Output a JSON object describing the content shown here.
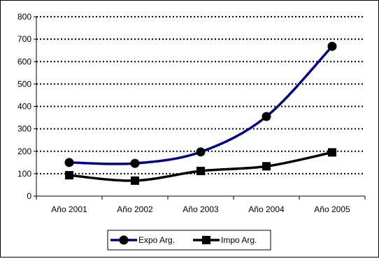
{
  "chart_data": {
    "type": "line",
    "categories": [
      "Año 2001",
      "Año 2002",
      "Año 2003",
      "Año 2004",
      "Año 2005"
    ],
    "series": [
      {
        "name": "Expo Arg.",
        "values": [
          150,
          146,
          197,
          355,
          668
        ],
        "color": "#000080",
        "marker": "circle"
      },
      {
        "name": "Impo Arg.",
        "values": [
          93,
          69,
          112,
          133,
          195
        ],
        "color": "#000000",
        "marker": "square"
      }
    ],
    "ylim": [
      0,
      800
    ],
    "yticks": [
      0,
      100,
      200,
      300,
      400,
      500,
      600,
      700,
      800
    ],
    "grid": true,
    "legend": "bottom"
  }
}
